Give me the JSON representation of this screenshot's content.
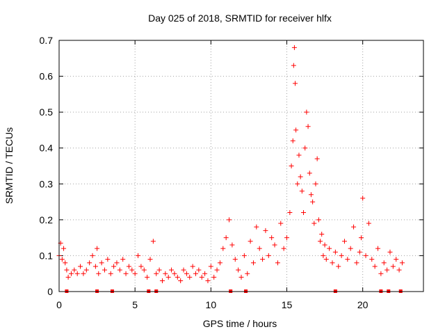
{
  "chart_data": {
    "type": "scatter",
    "title": "Day 025 of 2018, SRMTID for receiver hlfx",
    "xlabel": "GPS time / hours",
    "ylabel": "SRMTID / TECUs",
    "xlim": [
      0,
      24
    ],
    "ylim": [
      0,
      0.7
    ],
    "xticks": [
      0,
      5,
      10,
      15,
      20
    ],
    "yticks": [
      0,
      0.1,
      0.2,
      0.3,
      0.4,
      0.5,
      0.6,
      0.7
    ],
    "xtick_labels": [
      "0",
      "5",
      "10",
      "15",
      "20"
    ],
    "ytick_labels": [
      "0",
      "0.1",
      "0.2",
      "0.3",
      "0.4",
      "0.5",
      "0.6",
      "0.7"
    ],
    "grid": true,
    "marker": "+",
    "color": "#ff0000",
    "series": [
      {
        "name": "SRMTID",
        "x": [
          0.0,
          0.1,
          0.2,
          0.3,
          0.4,
          0.5,
          0.6,
          0.8,
          1.0,
          1.2,
          1.4,
          1.6,
          1.8,
          2.0,
          2.2,
          2.4,
          2.5,
          2.6,
          2.8,
          3.0,
          3.2,
          3.4,
          3.6,
          3.8,
          4.0,
          4.2,
          4.4,
          4.6,
          4.8,
          5.0,
          5.2,
          5.4,
          5.6,
          5.8,
          6.0,
          6.2,
          6.4,
          6.6,
          6.8,
          7.0,
          7.2,
          7.4,
          7.6,
          7.8,
          8.0,
          8.2,
          8.4,
          8.6,
          8.8,
          9.0,
          9.2,
          9.4,
          9.6,
          9.8,
          10.0,
          10.2,
          10.4,
          10.6,
          10.8,
          11.0,
          11.2,
          11.4,
          11.6,
          11.8,
          12.0,
          12.2,
          12.4,
          12.6,
          12.8,
          13.0,
          13.2,
          13.4,
          13.6,
          13.8,
          14.0,
          14.2,
          14.4,
          14.6,
          14.8,
          15.0,
          15.2,
          15.3,
          15.4,
          15.45,
          15.5,
          15.55,
          15.6,
          15.7,
          15.8,
          15.9,
          16.0,
          16.1,
          16.2,
          16.3,
          16.4,
          16.5,
          16.6,
          16.7,
          16.8,
          16.9,
          17.0,
          17.1,
          17.2,
          17.3,
          17.4,
          17.5,
          17.6,
          17.8,
          18.0,
          18.2,
          18.4,
          18.6,
          18.8,
          19.0,
          19.2,
          19.4,
          19.6,
          19.8,
          19.9,
          20.0,
          20.2,
          20.4,
          20.6,
          20.8,
          21.0,
          21.2,
          21.4,
          21.6,
          21.8,
          22.0,
          22.2,
          22.4,
          22.6
        ],
        "y": [
          0.1,
          0.135,
          0.09,
          0.12,
          0.08,
          0.06,
          0.04,
          0.05,
          0.06,
          0.05,
          0.07,
          0.05,
          0.06,
          0.08,
          0.1,
          0.07,
          0.12,
          0.05,
          0.08,
          0.06,
          0.09,
          0.05,
          0.07,
          0.08,
          0.06,
          0.09,
          0.05,
          0.07,
          0.06,
          0.05,
          0.1,
          0.07,
          0.06,
          0.04,
          0.09,
          0.14,
          0.05,
          0.06,
          0.03,
          0.05,
          0.04,
          0.06,
          0.05,
          0.04,
          0.03,
          0.06,
          0.05,
          0.04,
          0.07,
          0.05,
          0.06,
          0.04,
          0.05,
          0.03,
          0.07,
          0.04,
          0.06,
          0.08,
          0.12,
          0.15,
          0.2,
          0.13,
          0.09,
          0.06,
          0.04,
          0.1,
          0.05,
          0.14,
          0.08,
          0.18,
          0.12,
          0.09,
          0.17,
          0.1,
          0.15,
          0.13,
          0.08,
          0.19,
          0.12,
          0.15,
          0.22,
          0.35,
          0.42,
          0.63,
          0.68,
          0.58,
          0.45,
          0.3,
          0.38,
          0.32,
          0.28,
          0.22,
          0.4,
          0.5,
          0.46,
          0.33,
          0.27,
          0.25,
          0.19,
          0.3,
          0.37,
          0.2,
          0.14,
          0.16,
          0.1,
          0.13,
          0.09,
          0.12,
          0.08,
          0.11,
          0.07,
          0.1,
          0.14,
          0.09,
          0.12,
          0.18,
          0.08,
          0.11,
          0.15,
          0.26,
          0.1,
          0.19,
          0.09,
          0.07,
          0.12,
          0.05,
          0.08,
          0.06,
          0.11,
          0.07,
          0.09,
          0.06,
          0.08
        ]
      }
    ],
    "data_gaps_x": [
      0.5,
      2.5,
      3.5,
      5.9,
      6.4,
      11.3,
      12.3,
      18.2,
      21.2,
      21.7,
      22.5
    ]
  }
}
